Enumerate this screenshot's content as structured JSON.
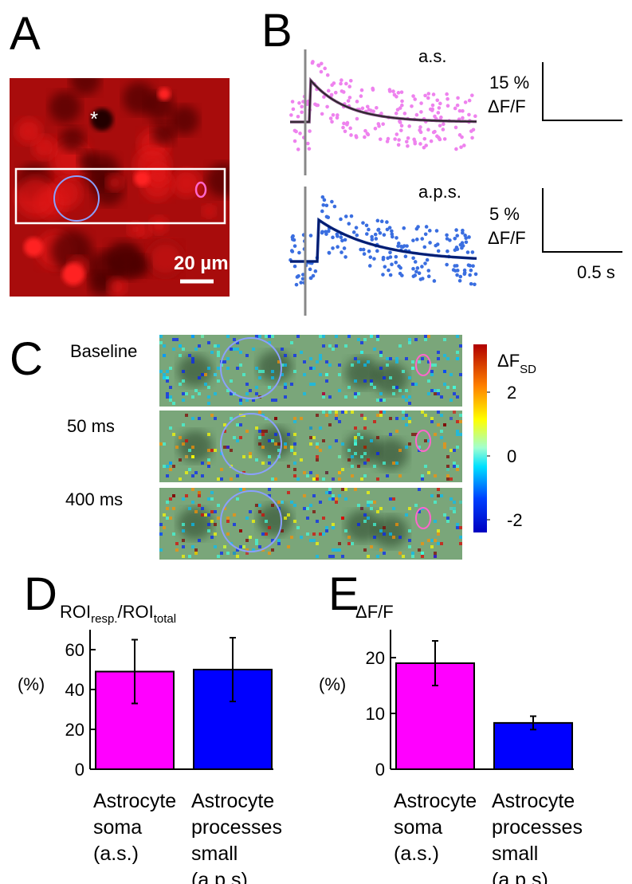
{
  "panels": {
    "a": {
      "label": "A",
      "marker": "*",
      "scale_bar": "20 µm"
    },
    "b": {
      "label": "B",
      "traces": [
        {
          "name": "a.s.",
          "scale": "15 %",
          "unit": "ΔF/F"
        },
        {
          "name": "a.p.s.",
          "scale": "5 %",
          "unit": "ΔF/F"
        }
      ],
      "time_scale": "0.5 s"
    },
    "c": {
      "label": "C",
      "rows": [
        "Baseline",
        "50 ms",
        "400 ms"
      ],
      "colorbar": {
        "title": [
          "ΔF",
          "SD"
        ],
        "lim": [
          -2.4,
          3.5
        ],
        "ticks": [
          2,
          0,
          -2
        ]
      }
    }
  },
  "chart_data": [
    {
      "type": "bar",
      "label": "D",
      "title": [
        "ROI",
        "resp.",
        "/ROI",
        "total"
      ],
      "ylabel": "(%)",
      "categories": [
        [
          "Astrocyte",
          "soma",
          "(a.s.)"
        ],
        [
          "Astrocyte",
          "processes",
          "small",
          "(a.p.s)"
        ]
      ],
      "values": [
        49,
        50
      ],
      "errors": [
        16,
        16
      ],
      "colors": [
        "#ff00ff",
        "#0000ff"
      ],
      "ylim": [
        0,
        70
      ],
      "yticks": [
        0,
        20,
        40,
        60
      ]
    },
    {
      "type": "bar",
      "label": "E",
      "title": [
        "ΔF/F"
      ],
      "ylabel": "(%)",
      "categories": [
        [
          "Astrocyte",
          "soma",
          "(a.s.)"
        ],
        [
          "Astrocyte",
          "processes",
          "small",
          "(a.p.s)"
        ]
      ],
      "values": [
        19,
        8.3
      ],
      "errors": [
        4,
        1.2
      ],
      "colors": [
        "#ff00ff",
        "#0000ff"
      ],
      "ylim": [
        0,
        25
      ],
      "yticks": [
        0,
        10,
        20
      ]
    }
  ]
}
